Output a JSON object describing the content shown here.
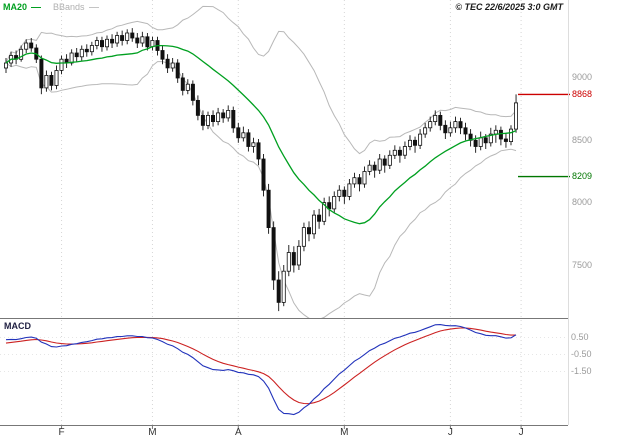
{
  "legend": {
    "ma20_label": "MA20",
    "bbands_label": "BBands"
  },
  "copyright_text": "© TEC 22/6/2025 3:0 GMT",
  "macd_panel_label": "MACD",
  "colors": {
    "ma20": "#00a020",
    "bbands": "#b8b8b8",
    "candle": "#111111",
    "candle_up_fill": "#ffffff",
    "macd_line": "#2233bb",
    "macd_signal": "#cc2222",
    "level_resistance": "#cc0000",
    "level_support": "#007700",
    "grid": "#d6d6d6",
    "axis_line": "#777777",
    "tick_text": "#9a9a9a",
    "month_text": "#333333"
  },
  "chart_data": {
    "type": "candlestick",
    "title": "",
    "subtitle": "",
    "legend_entries": [
      "MA20",
      "BBands",
      "MACD"
    ],
    "timeframe_note": "daily, late January to 22 June 2025",
    "price_axis": {
      "ylim": [
        7075,
        9625
      ],
      "ticks": [
        {
          "label": "9000",
          "value": 9000
        },
        {
          "label": "8500",
          "value": 8500
        },
        {
          "label": "8000",
          "value": 8000
        },
        {
          "label": "7500",
          "value": 7500
        }
      ]
    },
    "levels": [
      {
        "label": "8868",
        "value": 8868,
        "role": "resistance",
        "color": "#cc0000"
      },
      {
        "label": "8209",
        "value": 8209,
        "role": "support",
        "color": "#007700"
      }
    ],
    "x_axis": {
      "month_ticks": [
        {
          "label": "F",
          "i": 11
        },
        {
          "label": "M",
          "i": 29
        },
        {
          "label": "A",
          "i": 46
        },
        {
          "label": "M",
          "i": 67
        },
        {
          "label": "J",
          "i": 88
        },
        {
          "label": "J",
          "i": 102
        }
      ]
    },
    "macd_axis": {
      "ylim": [
        -3.9,
        1.35
      ],
      "ticks": [
        {
          "label": "0.50",
          "value": 0.5
        },
        {
          "label": "-0.50",
          "value": -0.5
        },
        {
          "label": "-1.50",
          "value": -1.5
        }
      ]
    },
    "indicators": {
      "ma_period": 20,
      "bb_period": 20,
      "bb_mult": 2,
      "macd_fast": 12,
      "macd_slow": 26,
      "macd_signal": 9,
      "macd_display_scale": 0.01
    },
    "candles_format": [
      "open",
      "high",
      "low",
      "close"
    ],
    "candles": [
      [
        9080,
        9160,
        9040,
        9120
      ],
      [
        9120,
        9210,
        9090,
        9180
      ],
      [
        9180,
        9220,
        9110,
        9150
      ],
      [
        9150,
        9260,
        9130,
        9230
      ],
      [
        9230,
        9310,
        9200,
        9280
      ],
      [
        9280,
        9320,
        9210,
        9240
      ],
      [
        9240,
        9270,
        9120,
        9150
      ],
      [
        9150,
        9180,
        8870,
        8920
      ],
      [
        8920,
        9060,
        8890,
        9020
      ],
      [
        9020,
        9050,
        8900,
        8940
      ],
      [
        8940,
        9100,
        8910,
        9060
      ],
      [
        9060,
        9180,
        9030,
        9150
      ],
      [
        9150,
        9190,
        9080,
        9120
      ],
      [
        9120,
        9230,
        9100,
        9200
      ],
      [
        9200,
        9240,
        9130,
        9170
      ],
      [
        9170,
        9260,
        9140,
        9230
      ],
      [
        9230,
        9270,
        9170,
        9210
      ],
      [
        9210,
        9290,
        9180,
        9260
      ],
      [
        9260,
        9330,
        9230,
        9300
      ],
      [
        9300,
        9330,
        9210,
        9250
      ],
      [
        9250,
        9340,
        9220,
        9310
      ],
      [
        9310,
        9350,
        9240,
        9280
      ],
      [
        9280,
        9370,
        9250,
        9340
      ],
      [
        9340,
        9380,
        9260,
        9300
      ],
      [
        9300,
        9390,
        9270,
        9360
      ],
      [
        9360,
        9400,
        9290,
        9320
      ],
      [
        9320,
        9360,
        9240,
        9280
      ],
      [
        9280,
        9370,
        9250,
        9330
      ],
      [
        9330,
        9360,
        9220,
        9250
      ],
      [
        9250,
        9330,
        9220,
        9300
      ],
      [
        9300,
        9330,
        9180,
        9220
      ],
      [
        9220,
        9260,
        9110,
        9150
      ],
      [
        9150,
        9190,
        9040,
        9080
      ],
      [
        9080,
        9160,
        9050,
        9120
      ],
      [
        9120,
        9150,
        8960,
        9000
      ],
      [
        9000,
        9040,
        8860,
        8900
      ],
      [
        8900,
        8990,
        8870,
        8950
      ],
      [
        8950,
        8980,
        8780,
        8820
      ],
      [
        8820,
        8860,
        8660,
        8700
      ],
      [
        8700,
        8740,
        8580,
        8620
      ],
      [
        8620,
        8730,
        8590,
        8700
      ],
      [
        8700,
        8740,
        8610,
        8650
      ],
      [
        8650,
        8760,
        8620,
        8720
      ],
      [
        8720,
        8750,
        8640,
        8680
      ],
      [
        8680,
        8780,
        8650,
        8740
      ],
      [
        8740,
        8770,
        8560,
        8600
      ],
      [
        8600,
        8640,
        8480,
        8520
      ],
      [
        8520,
        8610,
        8490,
        8560
      ],
      [
        8560,
        8590,
        8410,
        8450
      ],
      [
        8450,
        8520,
        8400,
        8480
      ],
      [
        8480,
        8510,
        8300,
        8350
      ],
      [
        8350,
        8390,
        8050,
        8100
      ],
      [
        8100,
        8150,
        7750,
        7800
      ],
      [
        7800,
        7850,
        7300,
        7380
      ],
      [
        7380,
        7450,
        7130,
        7200
      ],
      [
        7200,
        7500,
        7170,
        7450
      ],
      [
        7450,
        7660,
        7410,
        7600
      ],
      [
        7600,
        7650,
        7440,
        7500
      ],
      [
        7500,
        7700,
        7460,
        7650
      ],
      [
        7650,
        7840,
        7610,
        7800
      ],
      [
        7800,
        7850,
        7690,
        7750
      ],
      [
        7750,
        7940,
        7710,
        7900
      ],
      [
        7900,
        7950,
        7790,
        7850
      ],
      [
        7850,
        8040,
        7820,
        8000
      ],
      [
        8000,
        8050,
        7890,
        7950
      ],
      [
        7950,
        8090,
        7920,
        8050
      ],
      [
        8050,
        8140,
        8010,
        8100
      ],
      [
        8100,
        8130,
        7990,
        8050
      ],
      [
        8050,
        8190,
        8020,
        8150
      ],
      [
        8150,
        8240,
        8120,
        8200
      ],
      [
        8200,
        8230,
        8090,
        8150
      ],
      [
        8150,
        8290,
        8120,
        8250
      ],
      [
        8250,
        8340,
        8220,
        8300
      ],
      [
        8300,
        8330,
        8200,
        8260
      ],
      [
        8260,
        8390,
        8230,
        8350
      ],
      [
        8350,
        8380,
        8240,
        8300
      ],
      [
        8300,
        8420,
        8270,
        8380
      ],
      [
        8380,
        8460,
        8350,
        8420
      ],
      [
        8420,
        8450,
        8320,
        8380
      ],
      [
        8380,
        8490,
        8350,
        8450
      ],
      [
        8450,
        8540,
        8420,
        8500
      ],
      [
        8500,
        8530,
        8400,
        8460
      ],
      [
        8460,
        8590,
        8430,
        8550
      ],
      [
        8550,
        8640,
        8520,
        8600
      ],
      [
        8600,
        8690,
        8570,
        8650
      ],
      [
        8650,
        8740,
        8620,
        8700
      ],
      [
        8700,
        8730,
        8580,
        8620
      ],
      [
        8620,
        8660,
        8510,
        8560
      ],
      [
        8560,
        8650,
        8530,
        8600
      ],
      [
        8600,
        8690,
        8560,
        8650
      ],
      [
        8650,
        8680,
        8550,
        8600
      ],
      [
        8600,
        8640,
        8500,
        8550
      ],
      [
        8550,
        8590,
        8450,
        8500
      ],
      [
        8500,
        8540,
        8400,
        8450
      ],
      [
        8450,
        8570,
        8420,
        8520
      ],
      [
        8520,
        8550,
        8430,
        8480
      ],
      [
        8480,
        8600,
        8450,
        8550
      ],
      [
        8550,
        8620,
        8480,
        8580
      ],
      [
        8580,
        8610,
        8460,
        8510
      ],
      [
        8510,
        8560,
        8440,
        8490
      ],
      [
        8490,
        8620,
        8460,
        8590
      ],
      [
        8590,
        8868,
        8560,
        8800
      ]
    ]
  }
}
